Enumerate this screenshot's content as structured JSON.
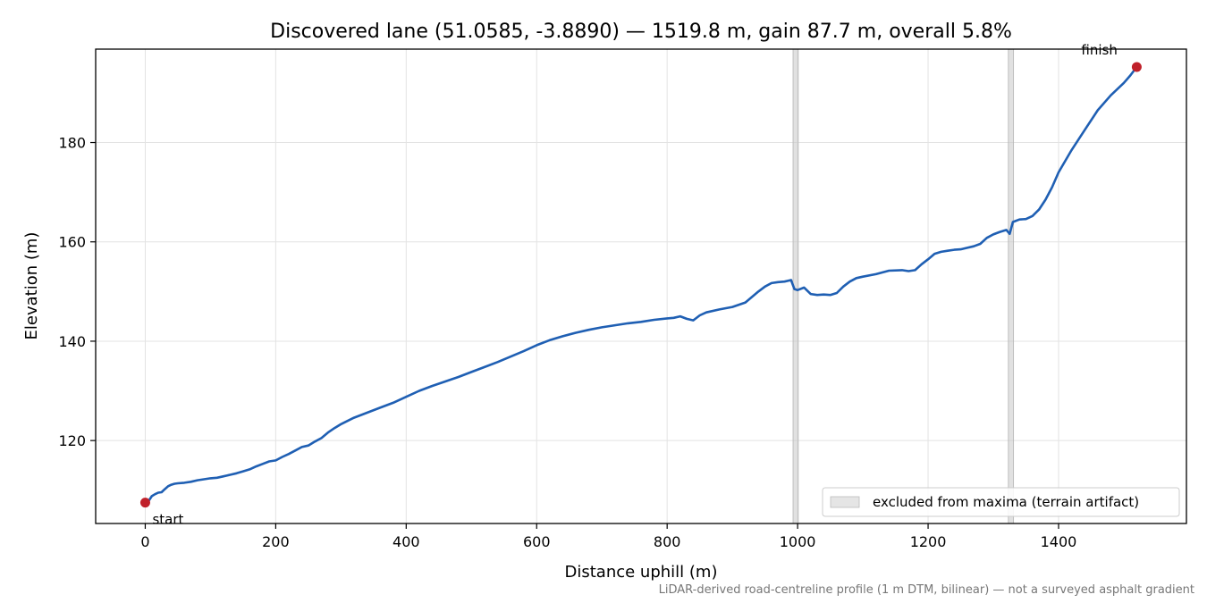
{
  "chart_data": {
    "type": "line",
    "title": "Discovered lane (51.0585, -3.8890) — 1519.8 m, gain 87.7 m, overall 5.8%",
    "xlabel": "Distance uphill (m)",
    "ylabel": "Elevation (m)",
    "xlim": [
      -76,
      1596
    ],
    "ylim": [
      103.3,
      198.8
    ],
    "xticks": [
      0,
      200,
      400,
      600,
      800,
      1000,
      1200,
      1400
    ],
    "yticks": [
      120,
      140,
      160,
      180
    ],
    "grid": true,
    "line_color": "#1f5fb3",
    "marker_color": "#c0202a",
    "series": [
      {
        "x": [
          0,
          5,
          10,
          15,
          20,
          25,
          30,
          35,
          40,
          45,
          50,
          60,
          70,
          80,
          90,
          100,
          110,
          120,
          130,
          140,
          150,
          160,
          170,
          180,
          190,
          200,
          210,
          220,
          230,
          240,
          250,
          260,
          270,
          280,
          290,
          300,
          320,
          340,
          360,
          380,
          400,
          420,
          440,
          460,
          480,
          500,
          520,
          540,
          560,
          580,
          600,
          620,
          640,
          660,
          680,
          700,
          720,
          740,
          760,
          780,
          800,
          810,
          820,
          830,
          840,
          850,
          860,
          880,
          900,
          920,
          940,
          950,
          960,
          970,
          980,
          990,
          995,
          1000,
          1010,
          1020,
          1030,
          1040,
          1050,
          1060,
          1070,
          1080,
          1090,
          1100,
          1120,
          1140,
          1160,
          1170,
          1180,
          1190,
          1200,
          1210,
          1220,
          1230,
          1240,
          1250,
          1260,
          1270,
          1280,
          1290,
          1300,
          1310,
          1320,
          1325,
          1330,
          1340,
          1350,
          1360,
          1370,
          1380,
          1390,
          1400,
          1420,
          1440,
          1460,
          1480,
          1500,
          1510,
          1519.8
        ],
        "y": [
          107.5,
          107.8,
          108.8,
          109.2,
          109.5,
          109.6,
          110.2,
          110.8,
          111.1,
          111.3,
          111.4,
          111.5,
          111.7,
          112.0,
          112.2,
          112.4,
          112.5,
          112.8,
          113.1,
          113.4,
          113.8,
          114.2,
          114.8,
          115.3,
          115.8,
          116.0,
          116.7,
          117.3,
          118.0,
          118.7,
          119.0,
          119.8,
          120.5,
          121.6,
          122.5,
          123.3,
          124.6,
          125.6,
          126.6,
          127.6,
          128.8,
          130.0,
          131.0,
          131.9,
          132.8,
          133.8,
          134.8,
          135.8,
          136.9,
          138.0,
          139.2,
          140.2,
          141.0,
          141.7,
          142.3,
          142.8,
          143.2,
          143.6,
          143.9,
          144.3,
          144.6,
          144.7,
          145.0,
          144.5,
          144.2,
          145.2,
          145.8,
          146.4,
          146.9,
          147.8,
          150.0,
          151.0,
          151.7,
          151.9,
          152.0,
          152.3,
          150.5,
          150.3,
          150.8,
          149.5,
          149.3,
          149.4,
          149.3,
          149.7,
          151.0,
          152.0,
          152.7,
          153.0,
          153.5,
          154.2,
          154.3,
          154.1,
          154.3,
          155.5,
          156.5,
          157.6,
          158.0,
          158.2,
          158.4,
          158.5,
          158.8,
          159.1,
          159.6,
          160.8,
          161.5,
          162.0,
          162.4,
          161.6,
          164.0,
          164.5,
          164.6,
          165.2,
          166.5,
          168.5,
          171.0,
          174.0,
          178.5,
          182.5,
          186.5,
          189.5,
          192.0,
          193.5,
          195.2
        ]
      }
    ],
    "excluded_bands": [
      [
        993,
        1001
      ],
      [
        1323,
        1331
      ]
    ],
    "markers": [
      {
        "x": 0,
        "y": 107.5,
        "label": "start"
      },
      {
        "x": 1519.8,
        "y": 195.2,
        "label": "finish"
      }
    ],
    "legend": {
      "label": "excluded from maxima (terrain artifact)",
      "position": "lower-right"
    },
    "footnote": "LiDAR-derived road-centreline profile (1 m DTM, bilinear) — not a surveyed asphalt gradient"
  }
}
